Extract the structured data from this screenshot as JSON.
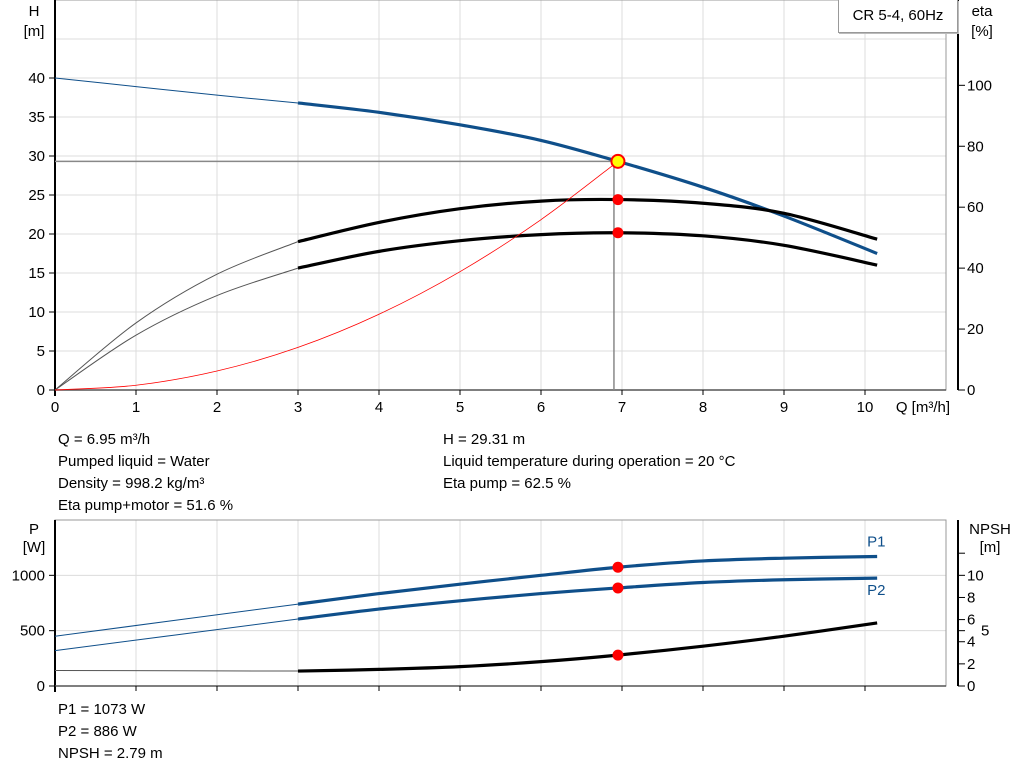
{
  "chart_data": [
    {
      "type": "line",
      "title": "CR 5-4, 60Hz",
      "xlabel": "Q [m³/h]",
      "ylabel_left": "H\n[m]",
      "ylabel_left_lines": [
        "H",
        "[m]"
      ],
      "ylabel_right_lines": [
        "eta",
        "[%]"
      ],
      "xlim": [
        0,
        11
      ],
      "ylim_left": [
        0,
        50
      ],
      "ylim_right": [
        0,
        128
      ],
      "x_ticks": [
        0,
        1,
        2,
        3,
        4,
        5,
        6,
        7,
        8,
        9,
        10
      ],
      "y_ticks_left": [
        0,
        5,
        10,
        15,
        20,
        25,
        30,
        35,
        40
      ],
      "y_ticks_right": [
        0,
        20,
        40,
        60,
        80,
        100
      ],
      "grid": true,
      "series": [
        {
          "id": "H",
          "axis": "left",
          "color": "#0f4f8a",
          "thin_until": 3,
          "x": [
            0,
            1,
            2,
            3,
            4,
            5,
            6,
            6.95,
            8,
            9,
            10.15
          ],
          "y": [
            40,
            38.9,
            37.8,
            36.8,
            35.6,
            34,
            32,
            29.31,
            26,
            22.3,
            17.5
          ]
        },
        {
          "id": "eta-pump",
          "axis": "right",
          "color": "#000000",
          "thin_until": 3,
          "x": [
            0,
            1,
            2,
            3,
            4,
            5,
            6,
            6.95,
            8,
            9,
            10.15
          ],
          "y": [
            0,
            22,
            38,
            48.7,
            55,
            59.5,
            62,
            62.5,
            61.3,
            58,
            49.5
          ]
        },
        {
          "id": "eta-pump-motor",
          "axis": "right",
          "color": "#000000",
          "thin_until": 3,
          "x": [
            0,
            1,
            2,
            3,
            4,
            5,
            6,
            6.95,
            8,
            9,
            10.15
          ],
          "y": [
            0,
            18,
            31,
            40,
            45.5,
            49,
            51,
            51.6,
            50.6,
            47.5,
            41
          ]
        },
        {
          "id": "system-curve",
          "axis": "left",
          "color": "#ff0000",
          "thin_until": 11,
          "x": [
            0,
            1,
            2,
            3,
            4,
            5,
            6,
            6.95
          ],
          "y": [
            0,
            0.61,
            2.43,
            5.46,
            9.71,
            15.17,
            21.84,
            29.31
          ]
        }
      ],
      "duty_point": {
        "x": 6.95,
        "y": 29.31,
        "eta_pump": 62.5,
        "eta_pump_motor": 51.6,
        "color": "#ffff00",
        "ring": "#ff0000"
      }
    },
    {
      "type": "line",
      "ylabel_left_lines": [
        "P",
        "[W]"
      ],
      "ylabel_right_lines": [
        "NPSH",
        "[m]"
      ],
      "xlim": [
        0,
        11
      ],
      "ylim_left": [
        0,
        1500
      ],
      "ylim_right": [
        0,
        15
      ],
      "x_ticks": [
        0,
        1,
        2,
        3,
        4,
        5,
        6,
        7,
        8,
        9,
        10
      ],
      "y_ticks_left": [
        0,
        500,
        1000
      ],
      "y_ticks_right": [
        0,
        2,
        4,
        5,
        6,
        8,
        10,
        12
      ],
      "y_tick_labels_right": [
        "0",
        "2",
        "4",
        "5",
        "6",
        "8",
        "10",
        ""
      ],
      "grid": true,
      "series": [
        {
          "id": "P1",
          "name": "P1",
          "axis": "left",
          "color": "#0f4f8a",
          "thin_until": 3,
          "x": [
            0,
            3,
            4,
            5,
            6,
            6.95,
            8,
            9,
            10.15
          ],
          "y": [
            450,
            740,
            835,
            920,
            1000,
            1073,
            1130,
            1155,
            1170
          ]
        },
        {
          "id": "P2",
          "name": "P2",
          "axis": "left",
          "color": "#0f4f8a",
          "thin_until": 3,
          "x": [
            0,
            3,
            4,
            5,
            6,
            6.95,
            8,
            9,
            10.15
          ],
          "y": [
            320,
            605,
            695,
            770,
            835,
            886,
            935,
            960,
            975
          ]
        },
        {
          "id": "NPSH",
          "axis": "right",
          "color": "#000000",
          "thin_until": 3,
          "x": [
            0,
            3,
            4,
            5,
            6,
            6.95,
            8,
            9,
            10.15
          ],
          "y": [
            1.4,
            1.35,
            1.5,
            1.75,
            2.2,
            2.79,
            3.6,
            4.5,
            5.7
          ]
        }
      ],
      "duty_point": {
        "x": 6.95,
        "P1": 1073,
        "P2": 886,
        "NPSH": 2.79,
        "color": "#ff0000"
      }
    }
  ],
  "info_top_left": [
    "Q = 6.95 m³/h",
    "Pumped liquid = Water",
    "Density = 998.2 kg/m³",
    "Eta pump+motor = 51.6 %"
  ],
  "info_top_right": [
    "H = 29.31 m",
    "Liquid temperature during operation = 20 °C",
    "Eta pump = 62.5 %"
  ],
  "info_bottom": [
    "P1 = 1073 W",
    "P2 = 886 W",
    "NPSH = 2.79 m"
  ]
}
